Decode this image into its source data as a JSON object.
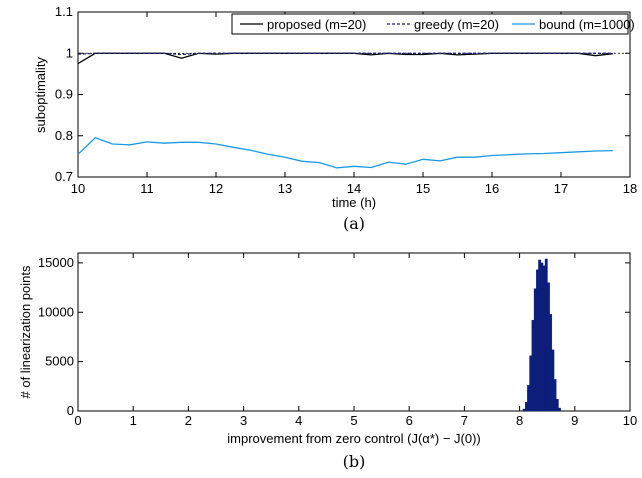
{
  "chart_data": [
    {
      "type": "line",
      "caption": "(a)",
      "xlabel": "time (h)",
      "ylabel": "suboptimality",
      "xlim": [
        10,
        18
      ],
      "ylim": [
        0.7,
        1.1
      ],
      "xticks": [
        "10",
        "11",
        "12",
        "13",
        "14",
        "15",
        "16",
        "17",
        "18"
      ],
      "yticks": [
        "0.7",
        "0.8",
        "0.9",
        "1",
        "1.1"
      ],
      "reference_line": 1.0,
      "legend_position": "top",
      "series": [
        {
          "name": "proposed (m=20)",
          "color": "#000000",
          "style": "solid",
          "x": [
            10,
            10.25,
            10.5,
            10.75,
            11,
            11.25,
            11.5,
            11.75,
            12,
            12.25,
            12.5,
            12.75,
            13,
            13.25,
            13.5,
            13.75,
            14,
            14.25,
            14.5,
            14.75,
            15,
            15.25,
            15.5,
            15.75,
            16,
            16.25,
            16.5,
            16.75,
            17,
            17.25,
            17.5,
            17.75
          ],
          "y": [
            0.975,
            1.0,
            1.0,
            1.0,
            1.0,
            1.0,
            0.988,
            1.0,
            0.998,
            1.0,
            1.0,
            1.0,
            1.0,
            1.0,
            1.0,
            1.0,
            1.0,
            0.996,
            1.0,
            0.997,
            0.997,
            1.0,
            0.996,
            0.998,
            1.0,
            1.0,
            1.0,
            1.0,
            1.0,
            1.0,
            0.994,
            0.999
          ]
        },
        {
          "name": "greedy (m=20)",
          "color": "#1f1f7a",
          "style": "dashed",
          "x": [
            10,
            10.25,
            10.5,
            10.75,
            11,
            11.25,
            11.5,
            11.75,
            12,
            12.25,
            12.5,
            12.75,
            13,
            13.25,
            13.5,
            13.75,
            14,
            14.25,
            14.5,
            14.75,
            15,
            15.25,
            15.5,
            15.75,
            16,
            16.25,
            16.5,
            16.75,
            17,
            17.25,
            17.5,
            17.75
          ],
          "y": [
            0.998,
            1.0,
            1.0,
            1.0,
            1.0,
            1.0,
            0.997,
            1.0,
            1.0,
            1.0,
            1.0,
            1.0,
            1.0,
            1.0,
            1.0,
            1.0,
            1.0,
            1.0,
            1.0,
            1.0,
            1.0,
            1.0,
            1.0,
            1.0,
            1.0,
            1.0,
            1.0,
            1.0,
            1.0,
            1.0,
            1.0,
            1.0
          ]
        },
        {
          "name": "bound (m=1000)",
          "color": "#1a9ae6",
          "style": "solid",
          "x": [
            10,
            10.25,
            10.5,
            10.75,
            11,
            11.25,
            11.5,
            11.75,
            12,
            12.25,
            12.5,
            12.75,
            13,
            13.25,
            13.5,
            13.75,
            14,
            14.25,
            14.5,
            14.75,
            15,
            15.25,
            15.5,
            15.75,
            16,
            16.25,
            16.5,
            16.75,
            17,
            17.25,
            17.5,
            17.75
          ],
          "y": [
            0.755,
            0.795,
            0.78,
            0.778,
            0.785,
            0.782,
            0.784,
            0.784,
            0.78,
            0.772,
            0.765,
            0.755,
            0.748,
            0.738,
            0.735,
            0.722,
            0.726,
            0.723,
            0.736,
            0.731,
            0.743,
            0.739,
            0.748,
            0.748,
            0.752,
            0.754,
            0.756,
            0.757,
            0.759,
            0.761,
            0.763,
            0.764
          ]
        }
      ]
    },
    {
      "type": "bar",
      "subtype": "histogram",
      "caption": "(b)",
      "xlabel": "improvement from zero control (J(α*) − J(0))",
      "ylabel": "# of linearization points",
      "xlim": [
        0,
        10
      ],
      "ylim": [
        0,
        16000
      ],
      "xticks": [
        "0",
        "1",
        "2",
        "3",
        "4",
        "5",
        "6",
        "7",
        "8",
        "9",
        "10"
      ],
      "yticks": [
        "0",
        "5000",
        "10000",
        "15000"
      ],
      "color": "#0d1f7a",
      "x": [
        8.08,
        8.12,
        8.16,
        8.2,
        8.24,
        8.28,
        8.32,
        8.36,
        8.4,
        8.44,
        8.48,
        8.52,
        8.56,
        8.6,
        8.64,
        8.68,
        8.72
      ],
      "values": [
        200,
        900,
        2600,
        5600,
        9200,
        12400,
        14300,
        15300,
        15000,
        14700,
        15400,
        13000,
        9800,
        6200,
        3200,
        1200,
        300
      ]
    }
  ]
}
